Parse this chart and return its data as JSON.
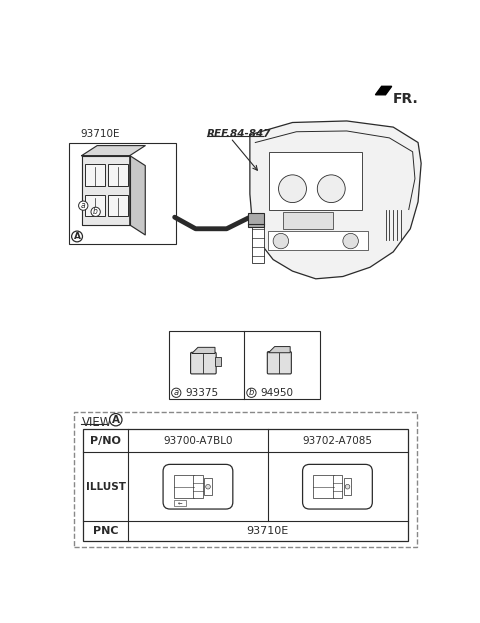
{
  "bg_color": "#ffffff",
  "line_color": "#2a2a2a",
  "fig_width": 4.8,
  "fig_height": 6.23,
  "fr_label": "FR.",
  "ref_label": "REF.84-847",
  "part_93710E": "93710E",
  "part_93375": "93375",
  "part_94950": "94950",
  "view_label": "VIEW",
  "view_A": "A",
  "pnc_label": "PNC",
  "pnc_value": "93710E",
  "illust_label": "ILLUST",
  "pno_label": "P/NO",
  "pno_left": "93700-A7BL0",
  "pno_right": "93702-A7085"
}
